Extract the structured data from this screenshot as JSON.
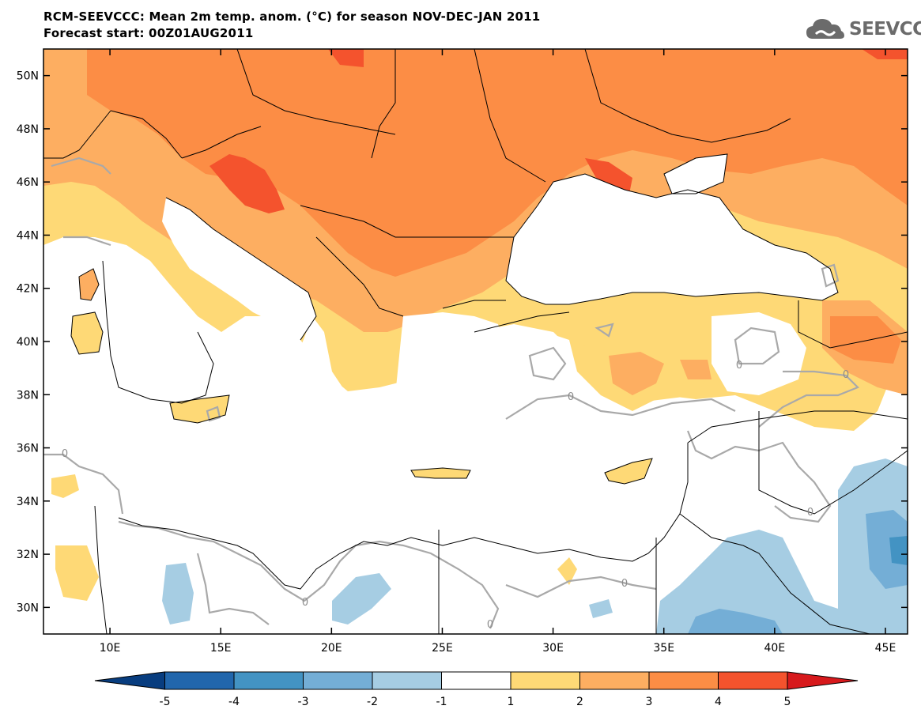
{
  "title_line1": "RCM-SEEVCCC: Mean 2m temp. anom. (°C) for season NOV-DEC-JAN 2011",
  "title_line2": "Forecast start: 00Z01AUG2011",
  "logo_text": "SEEVCCC",
  "map": {
    "lon_range": [
      7,
      46
    ],
    "lat_range": [
      29,
      51
    ],
    "y_ticks": [
      "50N",
      "48N",
      "46N",
      "44N",
      "42N",
      "40N",
      "38N",
      "36N",
      "34N",
      "32N",
      "30N"
    ],
    "y_tick_values": [
      50,
      48,
      46,
      44,
      42,
      40,
      38,
      36,
      34,
      32,
      30
    ],
    "x_ticks": [
      "10E",
      "15E",
      "20E",
      "25E",
      "30E",
      "35E",
      "40E",
      "45E"
    ],
    "x_tick_values": [
      10,
      15,
      20,
      25,
      30,
      35,
      40,
      45
    ],
    "contour_labels": [
      "0",
      "0",
      "0",
      "0",
      "0",
      "0",
      "0",
      "0"
    ]
  },
  "colorbar": {
    "labels": [
      "-5",
      "-4",
      "-3",
      "-2",
      "-1",
      "1",
      "2",
      "3",
      "4",
      "5"
    ],
    "colors": [
      "#083d7f",
      "#2166ac",
      "#4393c3",
      "#74aed6",
      "#a6cde3",
      "#ffffff",
      "#fed976",
      "#fdae61",
      "#fc8d45",
      "#f4532d",
      "#d7191c"
    ]
  },
  "colors": {
    "anom_4_5": "#f4532d",
    "anom_3_4": "#fc8d45",
    "anom_2_3": "#fdae61",
    "anom_1_2": "#fed976",
    "anom_m2_m1": "#a6cde3",
    "anom_m3_m2": "#74aed6",
    "anom_m4_m3": "#4393c3",
    "zero_contour": "#a9a9a9"
  }
}
